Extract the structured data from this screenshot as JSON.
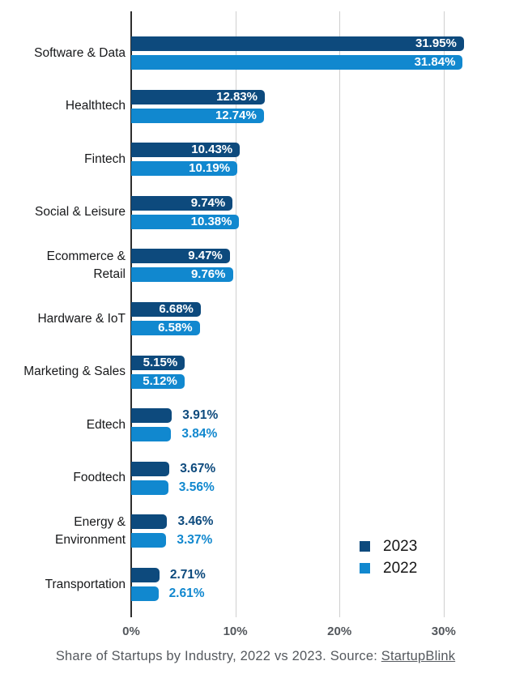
{
  "chart_data": {
    "type": "bar",
    "orientation": "horizontal",
    "title": "",
    "categories": [
      "Software & Data",
      "Healthtech",
      "Fintech",
      "Social & Leisure",
      "Ecommerce &\nRetail",
      "Hardware & IoT",
      "Marketing & Sales",
      "Edtech",
      "Foodtech",
      "Energy &\nEnvironment",
      "Transportation"
    ],
    "series": [
      {
        "name": "2023",
        "color": "#0d4a7d",
        "values": [
          31.95,
          12.83,
          10.43,
          9.74,
          9.47,
          6.68,
          5.15,
          3.91,
          3.67,
          3.46,
          2.71
        ],
        "labels": [
          "31.95%",
          "12.83%",
          "10.43%",
          "9.74%",
          "9.47%",
          "6.68%",
          "5.15%",
          "3.91%",
          "3.67%",
          "3.46%",
          "2.71%"
        ]
      },
      {
        "name": "2022",
        "color": "#1188cf",
        "values": [
          31.84,
          12.74,
          10.19,
          10.38,
          9.76,
          6.58,
          5.12,
          3.84,
          3.56,
          3.37,
          2.61
        ],
        "labels": [
          "31.84%",
          "12.74%",
          "10.19%",
          "10.38%",
          "9.76%",
          "6.58%",
          "5.12%",
          "3.84%",
          "3.56%",
          "3.37%",
          "2.61%"
        ]
      }
    ],
    "xlim": [
      0,
      33
    ],
    "tick_values": [
      0,
      10,
      20,
      30
    ],
    "tick_labels": [
      "0%",
      "10%",
      "20%",
      "30%"
    ],
    "grid": true,
    "legend_position": "bottom-right",
    "inside_label_threshold": 5,
    "value_label_color_inside": "#ffffff"
  },
  "caption": {
    "prefix": "Share of Startups by Industry, 2022 vs 2023. Source: ",
    "link_text": "StartupBlink"
  },
  "colors": {
    "axis_line": "#2e2e2e",
    "gridline": "#cfcfcf",
    "tick_label": "#53575c",
    "category_label": "#17181a",
    "caption_text": "#55595e"
  }
}
